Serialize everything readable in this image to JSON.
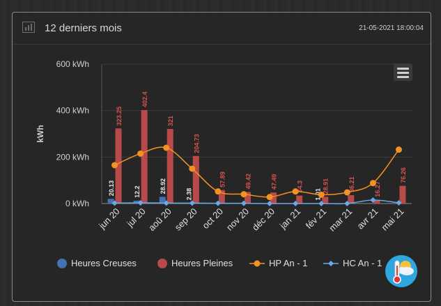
{
  "header": {
    "title": "12 derniers mois",
    "timestamp": "21-05-2021 18:00:04",
    "icon": "bar-chart-icon"
  },
  "menu_icon": "hamburger-menu-icon",
  "widget_icon": "weather-thermometer-icon",
  "colors": {
    "creuses": "#4472b4",
    "pleines": "#b84a4a",
    "hp": "#f39221",
    "hc": "#6aa9e9"
  },
  "chart_data": {
    "type": "bar",
    "categories": [
      "jun 20",
      "jul 20",
      "aoû 20",
      "sep 20",
      "oct 20",
      "nov 20",
      "déc 20",
      "jan 21",
      "fév 21",
      "mar 21",
      "avr 21",
      "mai 21"
    ],
    "ylabel": "kWh",
    "ylim": [
      0,
      600
    ],
    "yticks": [
      "0 kWh",
      "200 kWh",
      "400 kWh",
      "600 kWh"
    ],
    "series": [
      {
        "name": "Heures Creuses",
        "type": "bar",
        "values": [
          20.13,
          12.2,
          28.92,
          2.38,
          0,
          0,
          0,
          0,
          1.01,
          0,
          0,
          0
        ],
        "labels": [
          "20.13",
          "12.2",
          "28.92",
          "2.38",
          "",
          "",
          "",
          "",
          "1.01",
          "",
          "",
          ""
        ]
      },
      {
        "name": "Heures Pleines",
        "type": "bar",
        "values": [
          323.25,
          402.4,
          321,
          204.73,
          57.89,
          49.42,
          47.49,
          34.3,
          28.91,
          36.21,
          16.27,
          76.26
        ],
        "labels": [
          "323.25",
          "402.4",
          "321",
          "204.73",
          "57.89",
          "49.42",
          "47.49",
          "34.3",
          "28.91",
          "36.21",
          "16.27",
          "76.26"
        ]
      },
      {
        "name": "HP An - 1",
        "type": "line",
        "values": [
          165,
          215,
          240,
          150,
          52,
          40,
          28,
          52,
          38,
          48,
          88,
          232
        ]
      },
      {
        "name": "HC An - 1",
        "type": "line",
        "values": [
          2,
          3,
          2,
          2,
          1,
          1,
          0,
          0,
          0,
          0,
          15,
          3
        ]
      }
    ],
    "legend": [
      "Heures Creuses",
      "Heures Pleines",
      "HP An - 1",
      "HC An - 1"
    ]
  }
}
